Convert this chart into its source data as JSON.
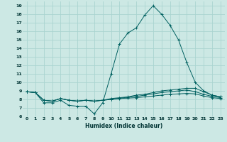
{
  "xlabel": "Humidex (Indice chaleur)",
  "bg_color": "#cce8e4",
  "grid_color": "#aad4d0",
  "line_color": "#006060",
  "xlim": [
    -0.5,
    23.5
  ],
  "ylim": [
    6,
    19.5
  ],
  "xticks": [
    0,
    1,
    2,
    3,
    4,
    5,
    6,
    7,
    8,
    9,
    10,
    11,
    12,
    13,
    14,
    15,
    16,
    17,
    18,
    19,
    20,
    21,
    22,
    23
  ],
  "yticks": [
    6,
    7,
    8,
    9,
    10,
    11,
    12,
    13,
    14,
    15,
    16,
    17,
    18,
    19
  ],
  "series": [
    {
      "x": [
        0,
        1,
        2,
        3,
        4,
        5,
        6,
        7,
        8,
        9,
        10,
        11,
        12,
        13,
        14,
        15,
        16,
        17,
        18,
        19,
        20,
        21,
        22,
        23
      ],
      "y": [
        8.9,
        8.8,
        7.6,
        7.6,
        7.9,
        7.3,
        7.2,
        7.2,
        6.3,
        7.6,
        11.0,
        14.5,
        15.8,
        16.4,
        17.9,
        19.0,
        18.0,
        16.7,
        15.0,
        12.3,
        10.0,
        9.0,
        8.5,
        8.3
      ]
    },
    {
      "x": [
        0,
        1,
        2,
        3,
        4,
        5,
        6,
        7,
        8,
        9,
        10,
        11,
        12,
        13,
        14,
        15,
        16,
        17,
        18,
        19,
        20,
        21,
        22,
        23
      ],
      "y": [
        8.9,
        8.8,
        7.9,
        7.8,
        8.1,
        7.9,
        7.8,
        7.9,
        7.8,
        7.9,
        8.1,
        8.2,
        8.3,
        8.5,
        8.6,
        8.8,
        9.0,
        9.1,
        9.2,
        9.3,
        9.3,
        8.9,
        8.5,
        8.3
      ]
    },
    {
      "x": [
        0,
        1,
        2,
        3,
        4,
        5,
        6,
        7,
        8,
        9,
        10,
        11,
        12,
        13,
        14,
        15,
        16,
        17,
        18,
        19,
        20,
        21,
        22,
        23
      ],
      "y": [
        8.9,
        8.8,
        7.9,
        7.8,
        8.1,
        7.9,
        7.8,
        7.9,
        7.8,
        7.9,
        8.0,
        8.15,
        8.25,
        8.35,
        8.5,
        8.65,
        8.8,
        8.9,
        9.0,
        9.1,
        8.9,
        8.6,
        8.35,
        8.2
      ]
    },
    {
      "x": [
        0,
        1,
        2,
        3,
        4,
        5,
        6,
        7,
        8,
        9,
        10,
        11,
        12,
        13,
        14,
        15,
        16,
        17,
        18,
        19,
        20,
        21,
        22,
        23
      ],
      "y": [
        8.9,
        8.8,
        7.9,
        7.8,
        8.1,
        7.9,
        7.8,
        7.9,
        7.8,
        7.9,
        8.0,
        8.1,
        8.15,
        8.2,
        8.3,
        8.4,
        8.5,
        8.6,
        8.65,
        8.7,
        8.65,
        8.4,
        8.2,
        8.1
      ]
    }
  ]
}
